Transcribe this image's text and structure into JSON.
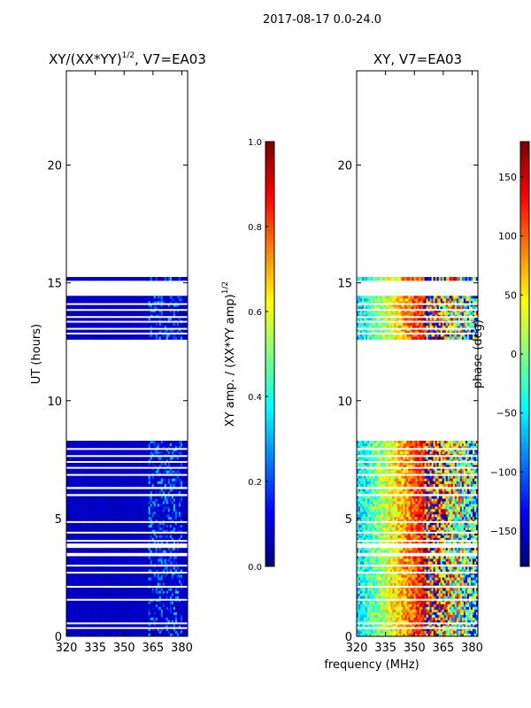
{
  "figure": {
    "suptitle": "2017-08-17 0.0-24.0",
    "xlabel_shared": "frequency (MHz)"
  },
  "chart_data": [
    {
      "type": "heatmap",
      "id": "amp",
      "title": "XY/(XX*YY)^1/2, V7=EA03",
      "title_main": "XY/(XX*YY)",
      "title_exp": "1/2",
      "title_suffix": ", V7=EA03",
      "ylabel": "UT (hours)",
      "xlabel": "",
      "xlim": [
        320,
        383
      ],
      "ylim": [
        0,
        24
      ],
      "xticks": [
        320,
        335,
        350,
        365,
        380
      ],
      "yticks": [
        0,
        5,
        10,
        15,
        20
      ],
      "colorbar": {
        "label": "XY amp. / (XX*YY amp)^1/2",
        "label_main": "XY amp. / (XX*YY amp)",
        "label_exp": "1/2",
        "range": [
          0.0,
          1.0
        ],
        "ticks": [
          "0.0",
          "0.2",
          "0.4",
          "0.6",
          "0.8",
          "1.0"
        ],
        "colormap": "jet"
      },
      "data_blocks_ut": [
        [
          0.0,
          3.4
        ],
        [
          3.55,
          3.75
        ],
        [
          3.95,
          5.95
        ],
        [
          6.05,
          6.25
        ],
        [
          6.35,
          8.3
        ],
        [
          12.6,
          14.45
        ],
        [
          15.1,
          15.25
        ]
      ],
      "gap_lines_ut": [
        0.35,
        0.55,
        1.55,
        2.1,
        2.7,
        3.0,
        4.05,
        4.4,
        4.85,
        6.85,
        7.15,
        7.4,
        7.65,
        7.95,
        12.85,
        13.05,
        13.35,
        13.55,
        13.85,
        14.1
      ],
      "typical_value": 0.05,
      "rfi_band_mhz": [
        363,
        380
      ]
    },
    {
      "type": "heatmap",
      "id": "phase",
      "title": "XY, V7=EA03",
      "ylabel": "",
      "xlabel": "frequency (MHz)",
      "xlim": [
        320,
        383
      ],
      "ylim": [
        0,
        24
      ],
      "xticks": [
        320,
        335,
        350,
        365,
        380
      ],
      "yticks": [
        0,
        5,
        10,
        15,
        20
      ],
      "colorbar": {
        "label": "phase (deg)",
        "range": [
          -180,
          180
        ],
        "ticks": [
          "−150",
          "−100",
          "−50",
          "0",
          "50",
          "100",
          "150"
        ],
        "tick_values": [
          -150,
          -100,
          -50,
          0,
          50,
          100,
          150
        ],
        "colormap": "jet"
      },
      "data_blocks_ut": [
        [
          0.0,
          3.4
        ],
        [
          3.55,
          3.75
        ],
        [
          3.95,
          5.95
        ],
        [
          6.05,
          6.25
        ],
        [
          6.35,
          8.3
        ],
        [
          12.6,
          14.45
        ],
        [
          15.1,
          15.25
        ]
      ],
      "gap_lines_ut": [
        0.35,
        0.55,
        1.55,
        2.1,
        2.7,
        3.0,
        4.05,
        4.4,
        4.85,
        6.85,
        7.15,
        7.4,
        7.65,
        7.95,
        12.85,
        13.05,
        13.35,
        13.55,
        13.85,
        14.1
      ],
      "phase_trend": "approx -60 deg at 320 MHz rising to +150 deg near 358 MHz, noisy at high frequency"
    }
  ]
}
